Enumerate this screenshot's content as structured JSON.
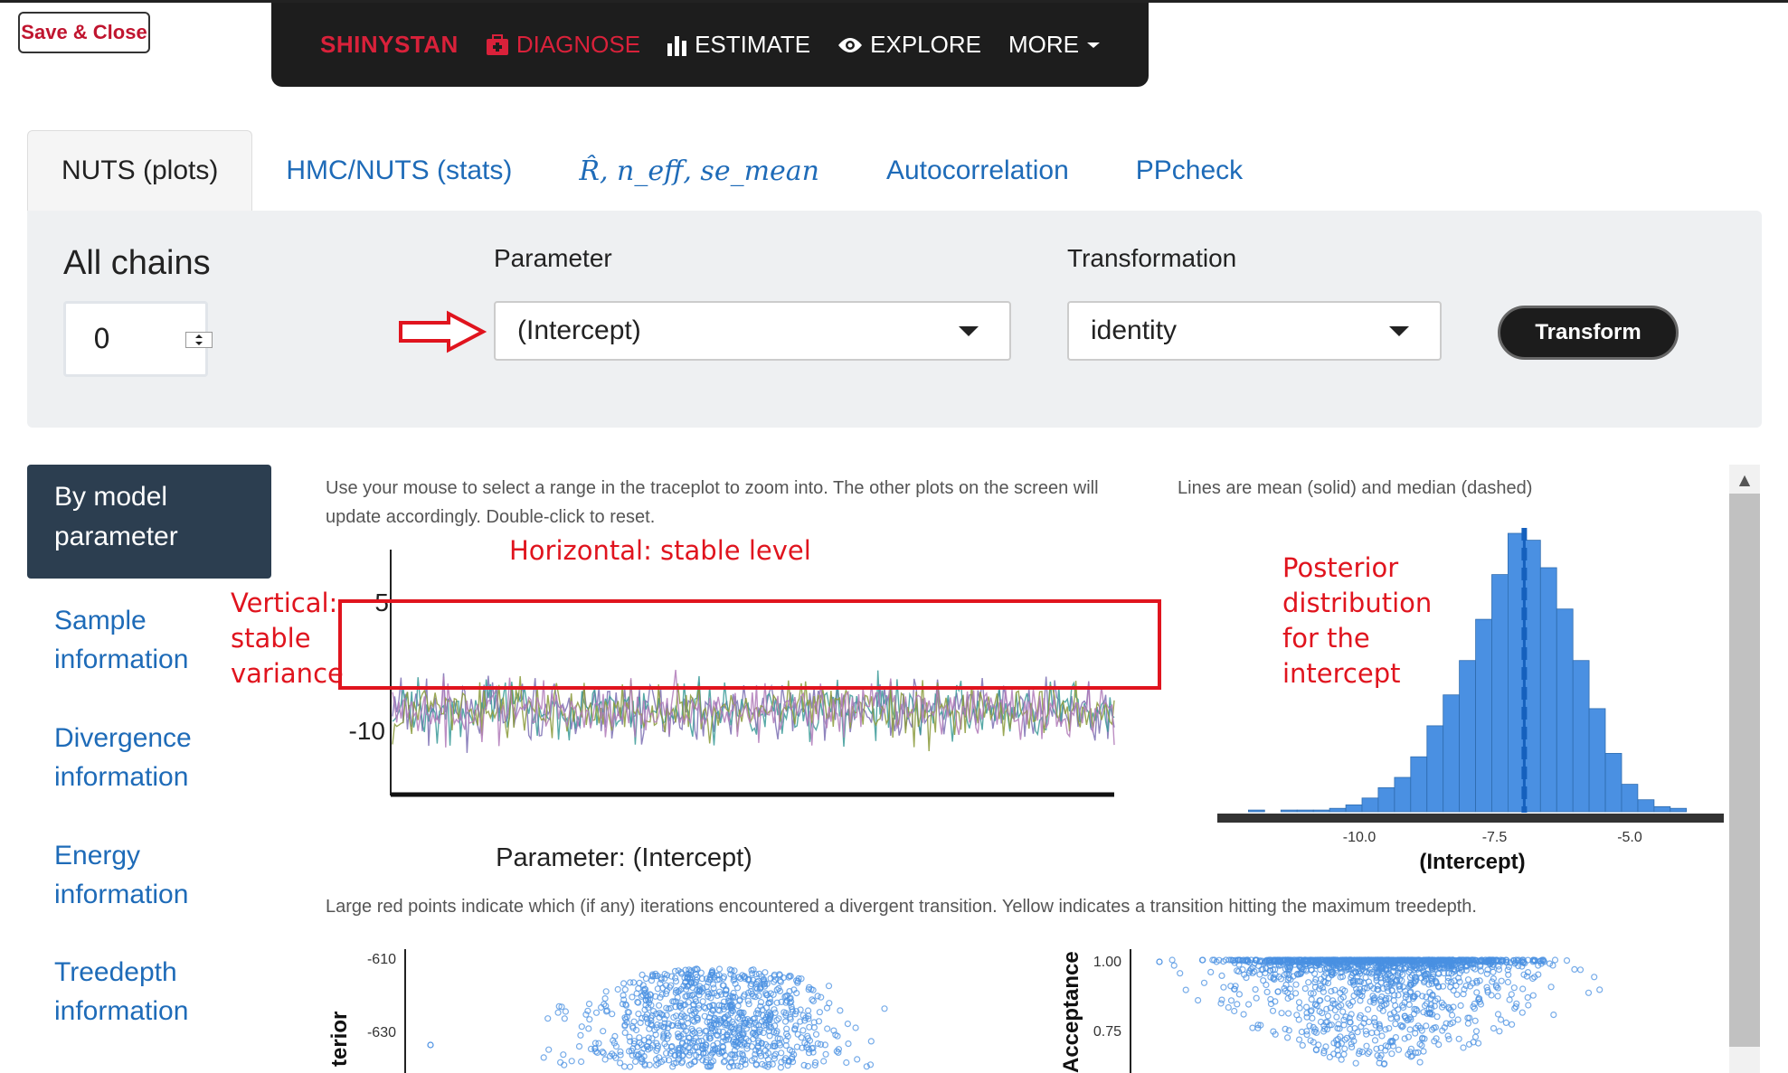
{
  "close_button": "Save & Close",
  "nav": {
    "brand": "SHINYSTAN",
    "items": [
      {
        "label": "DIAGNOSE",
        "icon": "medkit-icon"
      },
      {
        "label": "ESTIMATE",
        "icon": "bar-chart-icon"
      },
      {
        "label": "EXPLORE",
        "icon": "eye-icon"
      },
      {
        "label": "MORE",
        "icon": "caret-down-icon"
      }
    ]
  },
  "tabs": [
    {
      "label": "NUTS (plots)",
      "active": true
    },
    {
      "label": "HMC/NUTS (stats)"
    },
    {
      "label": "R̂, n_eff, se_mean"
    },
    {
      "label": "Autocorrelation"
    },
    {
      "label": "PPcheck"
    }
  ],
  "controls": {
    "chains_label": "All chains",
    "chains_value": "0",
    "parameter_label": "Parameter",
    "parameter_value": "(Intercept)",
    "transformation_label": "Transformation",
    "transformation_value": "identity",
    "transform_button": "Transform"
  },
  "sidebar": [
    "By model parameter",
    "Sample information",
    "Divergence information",
    "Energy information",
    "Treedepth information"
  ],
  "notes": {
    "trace": "Use your mouse to select a range in the traceplot to zoom into. The other plots on the screen will update accordingly. Double-click to reset.",
    "hist": "Lines are mean (solid) and median (dashed)",
    "divergent": "Large red points indicate which (if any) iterations encountered a divergent transition. Yellow indicates a transition hitting the maximum treedepth."
  },
  "annotations": {
    "horizontal": "Horizontal: stable level",
    "vertical": [
      "Vertical:",
      "stable",
      "variance"
    ],
    "posterior": [
      "Posterior",
      "distribution",
      "for the",
      "intercept"
    ]
  },
  "chart_data": [
    {
      "type": "line",
      "title": "Parameter: (Intercept)",
      "ytick_labels": [
        "5",
        "-10"
      ],
      "series_colors": [
        "#7b6fb3",
        "#3a9a98",
        "#8a9a3a",
        "#b07ab8"
      ],
      "y_range_observed": [
        -12,
        6
      ]
    },
    {
      "type": "bar",
      "xlabel": "(Intercept)",
      "xtick_labels": [
        "-10.0",
        "-7.5",
        "-5.0"
      ],
      "bins_center": [
        -11.9,
        -11.6,
        -11.3,
        -11.0,
        -10.7,
        -10.4,
        -10.1,
        -9.8,
        -9.5,
        -9.2,
        -8.9,
        -8.6,
        -8.3,
        -8.0,
        -7.7,
        -7.4,
        -7.1,
        -6.8,
        -6.5,
        -6.2,
        -5.9,
        -5.6,
        -5.3,
        -5.0,
        -4.7,
        -4.4,
        -4.1
      ],
      "counts": [
        1,
        0,
        1,
        1,
        1,
        2,
        4,
        8,
        14,
        20,
        32,
        50,
        68,
        88,
        112,
        138,
        162,
        158,
        142,
        118,
        88,
        60,
        34,
        16,
        7,
        3,
        2
      ],
      "mean": -6.95,
      "median": -6.95,
      "color": "#4a90e2"
    },
    {
      "type": "scatter",
      "ytick_labels": [
        "-610",
        "-630"
      ],
      "ylabel": "terior",
      "color": "#4a90e2"
    },
    {
      "type": "scatter",
      "ytick_labels": [
        "1.00",
        "0.75"
      ],
      "ylabel": "Acceptance",
      "color": "#4a90e2"
    }
  ]
}
